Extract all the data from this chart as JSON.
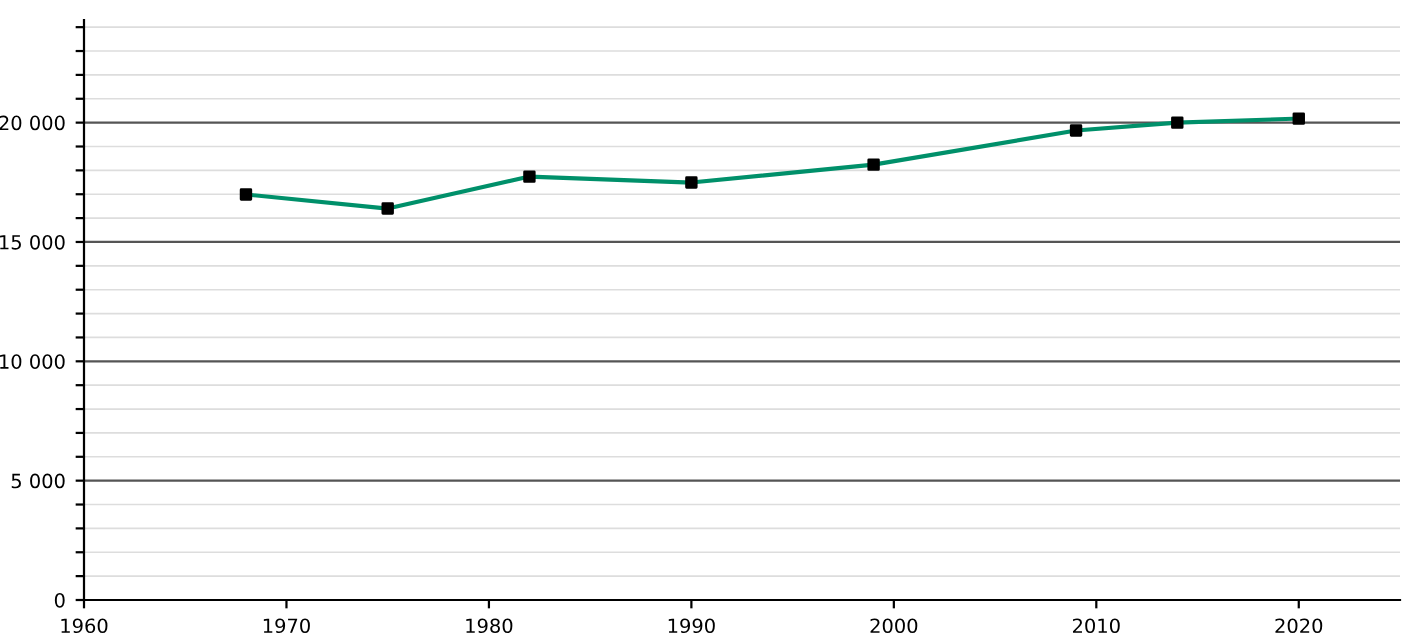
{
  "chart_data": {
    "type": "line",
    "x": [
      1968,
      1975,
      1982,
      1990,
      1999,
      2009,
      2014,
      2020
    ],
    "series": [
      {
        "color": "#00906a",
        "values": [
          16990,
          16400,
          17740,
          17490,
          18240,
          19670,
          20000,
          20170
        ]
      }
    ],
    "xlim": [
      1960,
      2025
    ],
    "xticks": [
      1960,
      1970,
      1980,
      1990,
      2000,
      2010,
      2020
    ],
    "ylim": [
      0,
      24300
    ],
    "yticks": [
      0,
      {
        "value": 1000,
        "label": null
      },
      {
        "value": 2000,
        "label": null
      },
      {
        "value": 3000,
        "label": null
      },
      {
        "value": 4000,
        "label": null
      },
      {
        "value": 5000,
        "label": "5 000"
      },
      {
        "value": 6000,
        "label": null
      },
      {
        "value": 7000,
        "label": null
      },
      {
        "value": 8000,
        "label": null
      },
      {
        "value": 9000,
        "label": null
      },
      {
        "value": 10000,
        "label": "10 000"
      },
      {
        "value": 11000,
        "label": null
      },
      {
        "value": 12000,
        "label": null
      },
      {
        "value": 13000,
        "label": null
      },
      {
        "value": 14000,
        "label": null
      },
      {
        "value": 15000,
        "label": "15 000"
      },
      {
        "value": 16000,
        "label": null
      },
      {
        "value": 17000,
        "label": null
      },
      {
        "value": 18000,
        "label": null
      },
      {
        "value": 19000,
        "label": null
      },
      {
        "value": 20000,
        "label": "20 000"
      },
      {
        "value": 21000,
        "label": null
      },
      {
        "value": 22000,
        "label": null
      },
      {
        "value": 23000,
        "label": null
      },
      {
        "value": 24000,
        "label": null
      }
    ],
    "grid": "y",
    "marker": "square",
    "line_style": "solid",
    "legend": false
  }
}
